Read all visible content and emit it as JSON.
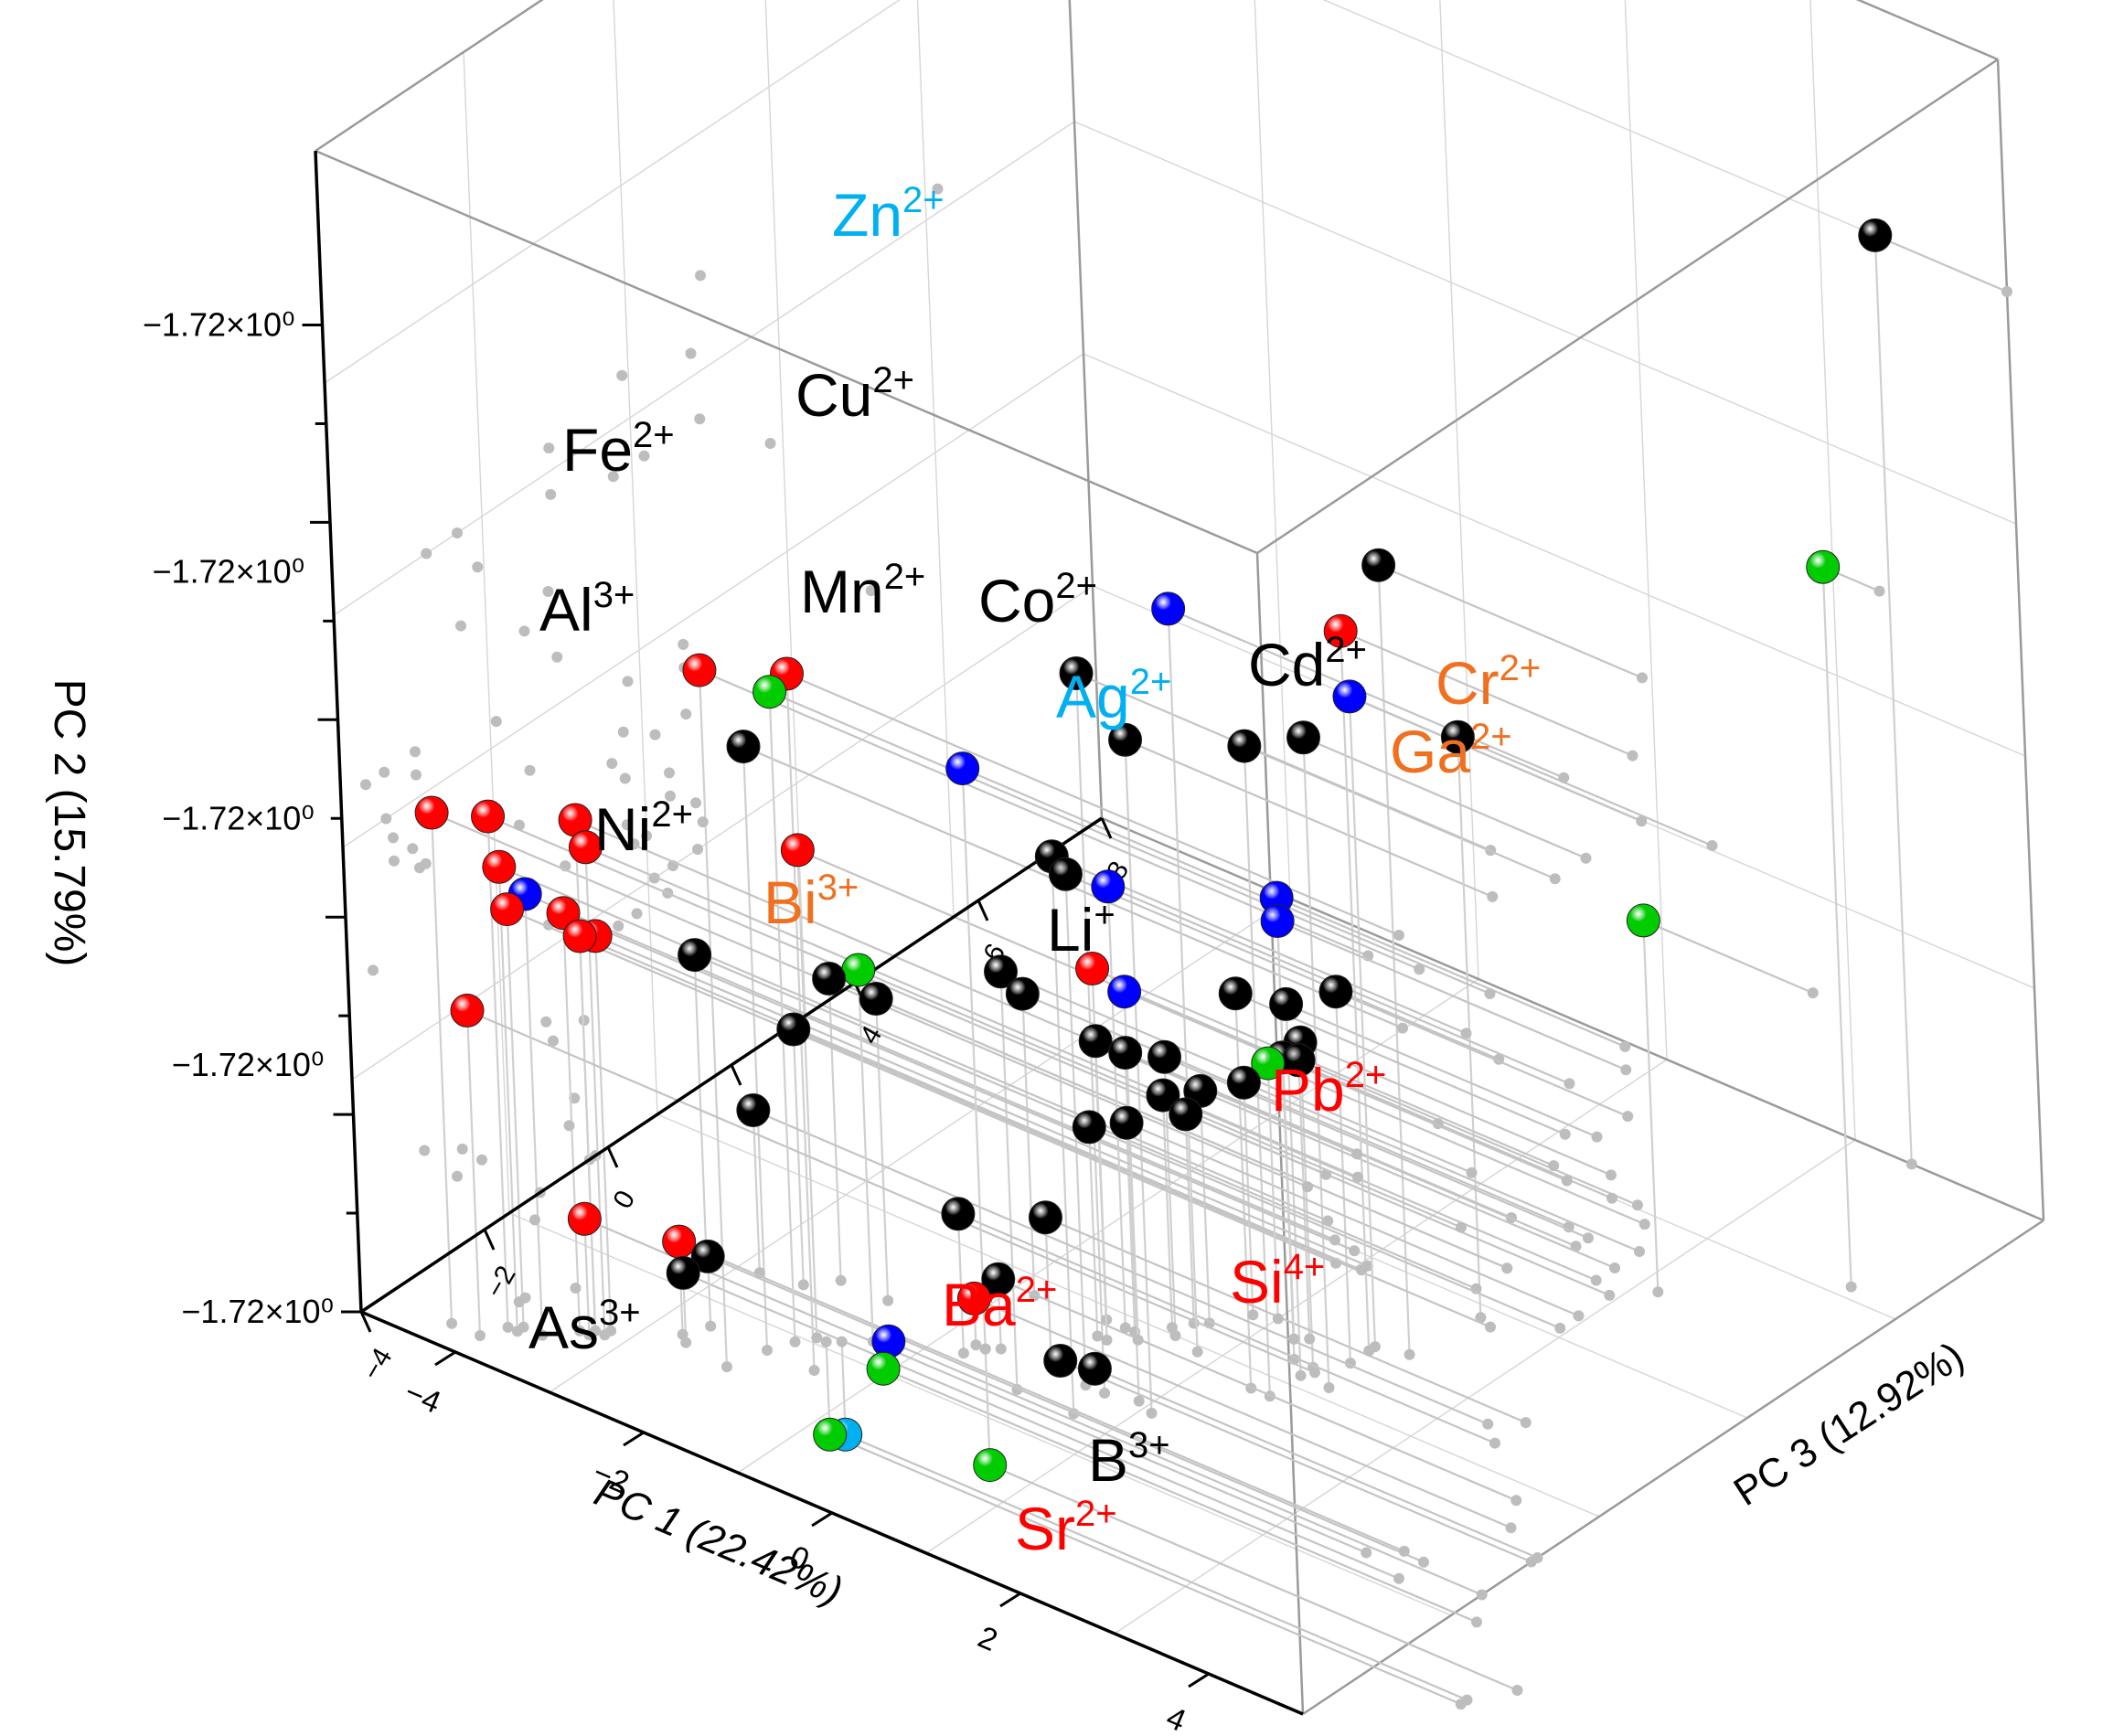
{
  "chart_data": {
    "type": "scatter3d",
    "title": "",
    "x_axis": {
      "label": "PC 1 (22.42%)",
      "ticks": [
        "-4",
        "-2",
        "0",
        "2",
        "4"
      ],
      "range": [
        -5,
        5
      ]
    },
    "y_axis": {
      "label": "PC 2 (15.79%)",
      "ticks": [
        "-1.72x10⁰",
        "-1.72x10⁰",
        "-1.72x10⁰",
        "-1.72x10⁰",
        "-1.72x10⁰"
      ],
      "range": [
        0,
        5
      ]
    },
    "z_axis": {
      "label": "PC 3 (12.92%)",
      "ticks": [
        "-4",
        "-2",
        "0",
        "2",
        "4",
        "6",
        "8"
      ],
      "range": [
        -4,
        8
      ]
    },
    "group_colors": {
      "black": "#000000",
      "red": "#ff0000",
      "blue": "#0000ff",
      "green": "#00cc00",
      "cyan": "#00b0f0",
      "orange": "#f07020"
    },
    "ion_labels": [
      {
        "base": "Zn",
        "charge": "2+",
        "color": "#00b0f0"
      },
      {
        "base": "Cu",
        "charge": "2+",
        "color": "#000000"
      },
      {
        "base": "Fe",
        "charge": "2+",
        "color": "#000000"
      },
      {
        "base": "Al",
        "charge": "3+",
        "color": "#000000"
      },
      {
        "base": "Mn",
        "charge": "2+",
        "color": "#000000"
      },
      {
        "base": "Co",
        "charge": "2+",
        "color": "#000000"
      },
      {
        "base": "Ag",
        "charge": "2+",
        "color": "#00b0f0"
      },
      {
        "base": "Cd",
        "charge": "2+",
        "color": "#000000"
      },
      {
        "base": "Cr",
        "charge": "2+",
        "color": "#f07020"
      },
      {
        "base": "Ga",
        "charge": "2+",
        "color": "#f07020"
      },
      {
        "base": "Ni",
        "charge": "2+",
        "color": "#000000"
      },
      {
        "base": "Bi",
        "charge": "3+",
        "color": "#f07020"
      },
      {
        "base": "Li",
        "charge": "+",
        "color": "#000000"
      },
      {
        "base": "Pb",
        "charge": "2+",
        "color": "#ff0000"
      },
      {
        "base": "Si",
        "charge": "4+",
        "color": "#ff0000"
      },
      {
        "base": "Ba",
        "charge": "2+",
        "color": "#ff0000"
      },
      {
        "base": "As",
        "charge": "3+",
        "color": "#000000"
      },
      {
        "base": "B",
        "charge": "3+",
        "color": "#000000"
      },
      {
        "base": "Sr",
        "charge": "2+",
        "color": "#ff0000"
      }
    ],
    "series": [
      {
        "name": "black",
        "points": [
          [
            3.6,
            4.0,
            8.0
          ],
          [
            0.6,
            3.1,
            -0.5
          ],
          [
            2.2,
            3.4,
            2.0
          ],
          [
            1.1,
            2.9,
            -0.5
          ],
          [
            1.7,
            2.8,
            0.5
          ],
          [
            2.3,
            2.5,
            3.0
          ],
          [
            2.0,
            2.8,
            1.0
          ],
          [
            -2.0,
            2.6,
            -2.0
          ],
          [
            0.6,
            2.4,
            -1.0
          ],
          [
            0.4,
            2.2,
            -0.5
          ],
          [
            1.5,
            1.7,
            0.5
          ],
          [
            1.7,
            1.6,
            1.0
          ],
          [
            1.9,
            1.6,
            1.5
          ],
          [
            1.7,
            1.4,
            1.2
          ],
          [
            0.0,
            1.8,
            -1.0
          ],
          [
            0.9,
            1.5,
            -0.4
          ],
          [
            -3.3,
            1.3,
            -1.0
          ],
          [
            -2.2,
            1.3,
            -0.5
          ],
          [
            -2.4,
            1.1,
            -0.8
          ],
          [
            -1.7,
            1.3,
            -0.5
          ],
          [
            -0.8,
            1.3,
            0.5
          ],
          [
            -0.1,
            1.2,
            0.6
          ],
          [
            1.4,
            1.2,
            1.6
          ],
          [
            0.5,
            1.2,
            0.8
          ],
          [
            1.5,
            1.3,
            1.2
          ],
          [
            0.4,
            1.0,
            0.9
          ],
          [
            0.6,
            1.0,
            1.2
          ],
          [
            0.8,
            1.0,
            1.6
          ],
          [
            0.0,
            0.9,
            0.3
          ],
          [
            0.2,
            0.9,
            0.6
          ],
          [
            0.5,
            0.9,
            1.1
          ],
          [
            -0.7,
            0.6,
            -0.8
          ],
          [
            -0.1,
            0.6,
            -0.3
          ],
          [
            -2.6,
            0.3,
            -2.4
          ],
          [
            -2.6,
            0.3,
            -2.0
          ],
          [
            -0.5,
            0.3,
            -0.5
          ],
          [
            0.0,
            0.0,
            -0.3
          ],
          [
            0.3,
            0.0,
            -0.2
          ],
          [
            -2.8,
            0.7,
            -0.9
          ]
        ]
      },
      {
        "name": "red",
        "points": [
          [
            1.9,
            3.1,
            1.8
          ],
          [
            -2.1,
            3.0,
            -2.5
          ],
          [
            -1.5,
            3.0,
            -2.0
          ],
          [
            -4.3,
            2.2,
            -3.6
          ],
          [
            -3.9,
            2.2,
            -3.3
          ],
          [
            -3.3,
            2.2,
            -2.8
          ],
          [
            -3.2,
            2.1,
            -2.8
          ],
          [
            -1.8,
            2.1,
            -1.5
          ],
          [
            -3.8,
            2.0,
            -3.3
          ],
          [
            -3.8,
            1.8,
            -3.2
          ],
          [
            -3.4,
            1.8,
            -2.9
          ],
          [
            -3.3,
            1.7,
            -2.8
          ],
          [
            -3.2,
            1.7,
            -2.7
          ],
          [
            0.1,
            1.6,
            0.3
          ],
          [
            -4.0,
            1.4,
            -3.6
          ],
          [
            -3.3,
            0.5,
            -2.9
          ],
          [
            -2.7,
            0.4,
            -2.3
          ],
          [
            -0.7,
            0.2,
            -0.6
          ]
        ]
      },
      {
        "name": "blue",
        "points": [
          [
            0.8,
            3.2,
            0.7
          ],
          [
            1.9,
            2.8,
            1.9
          ],
          [
            0.1,
            1.9,
            0.6
          ],
          [
            1.3,
            1.9,
            1.5
          ],
          [
            1.3,
            1.8,
            1.5
          ],
          [
            0.3,
            1.5,
            0.5
          ],
          [
            -3.6,
            1.9,
            -3.2
          ],
          [
            -1.3,
            0.0,
            -1.1
          ],
          [
            -0.6,
            2.5,
            -0.6
          ]
        ]
      },
      {
        "name": "green",
        "points": [
          [
            4.4,
            3.1,
            5.8
          ],
          [
            -1.9,
            2.8,
            -1.7
          ],
          [
            -1.4,
            1.6,
            -1.2
          ],
          [
            3.2,
            1.6,
            4.5
          ],
          [
            1.0,
            1.1,
            1.7
          ],
          [
            -1.3,
            -0.1,
            -1.2
          ],
          [
            -1.7,
            -0.4,
            -1.5
          ],
          [
            -0.6,
            -0.5,
            -0.6
          ]
        ]
      },
      {
        "name": "cyan",
        "points": [
          [
            -1.6,
            -0.4,
            -1.4
          ]
        ]
      }
    ]
  }
}
